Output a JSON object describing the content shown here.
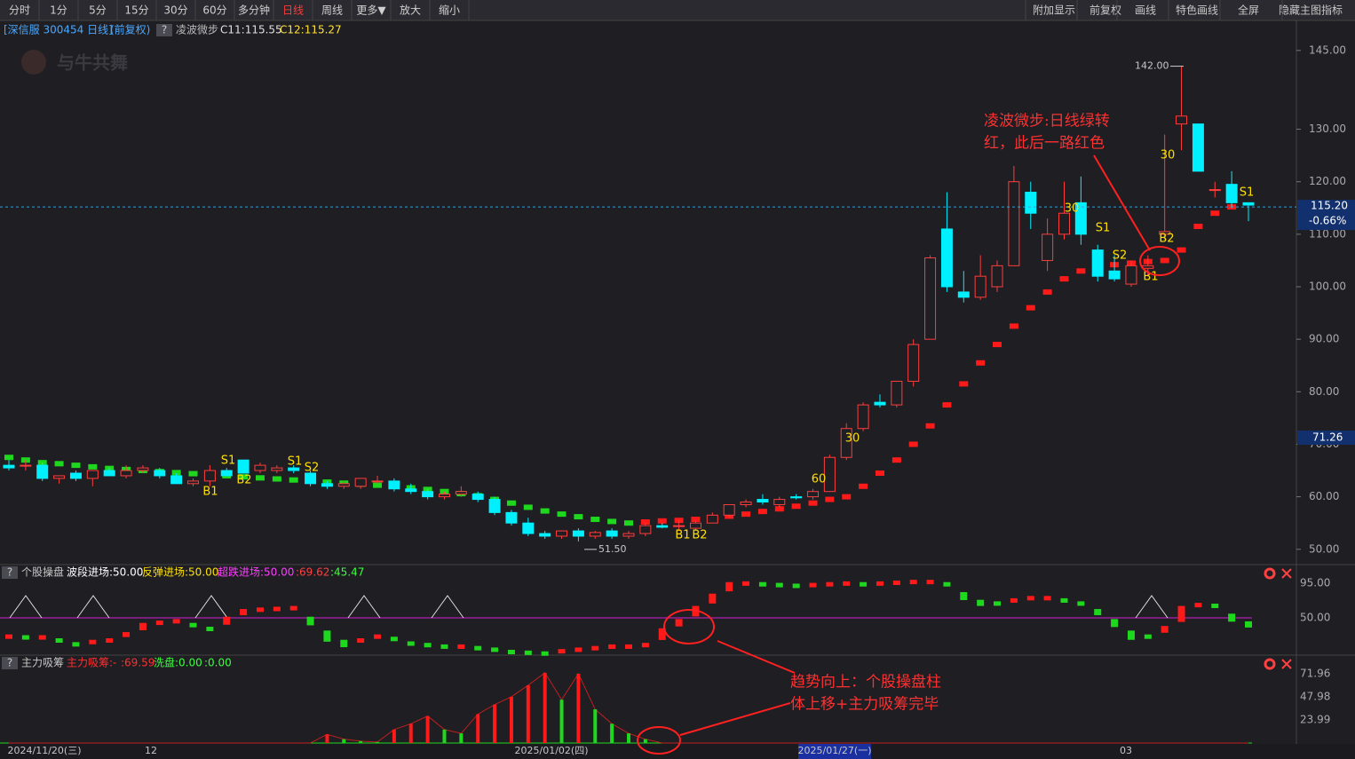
{
  "toolbar": {
    "left": [
      "分时",
      "1分",
      "5分",
      "15分",
      "30分",
      "60分",
      "多分钟",
      "日线",
      "周线",
      "更多▼",
      "放大",
      "缩小"
    ],
    "active": "日线",
    "right": [
      "附加显示",
      "前复权",
      "画线",
      "特色画线",
      "全屏",
      "隐藏主图指标"
    ]
  },
  "header": {
    "stock": "[深信服 300454 日线]",
    "adjust": "(前复权)",
    "help": "?",
    "indicator": "凌波微步",
    "c11": "C11:115.55",
    "c12": "C12:115.27",
    "watermark": "与牛共舞"
  },
  "chart_data": {
    "type": "candlestick",
    "ylim": [
      48.1,
      147
    ],
    "yticks": [
      {
        "value": 145,
        "label": "145.00"
      },
      {
        "value": 130,
        "label": "130.00"
      },
      {
        "value": 120,
        "label": "120.00"
      },
      {
        "value": 110,
        "label": "110.00"
      },
      {
        "value": 100,
        "label": "100.00"
      },
      {
        "value": 90,
        "label": "90.00"
      },
      {
        "value": 80,
        "label": "80.00"
      },
      {
        "value": 70,
        "label": "70.00"
      },
      {
        "value": 60,
        "label": "60.00"
      },
      {
        "value": 50,
        "label": "50.00"
      }
    ],
    "up_color": "#ff3d3d",
    "down_color": "#00f0ff",
    "candles": [
      [
        66,
        67,
        65,
        65.5
      ],
      [
        66,
        67,
        65,
        66
      ],
      [
        66,
        66.5,
        63,
        63.5
      ],
      [
        63.5,
        64,
        62.5,
        64
      ],
      [
        64.5,
        65,
        63,
        63.5
      ],
      [
        63.5,
        65,
        62,
        65
      ],
      [
        65,
        65.5,
        64,
        64
      ],
      [
        64,
        66,
        63.5,
        65
      ],
      [
        65,
        66,
        64.5,
        65.5
      ],
      [
        65,
        65.5,
        63.5,
        64
      ],
      [
        64,
        64.5,
        62.5,
        62.5
      ],
      [
        62.5,
        63.5,
        62,
        63
      ],
      [
        63,
        66,
        62,
        65
      ],
      [
        65,
        65.5,
        64,
        64
      ],
      [
        67,
        67,
        64.5,
        64.5
      ],
      [
        65,
        66.5,
        64.5,
        66
      ],
      [
        65,
        66,
        64.5,
        65.5
      ],
      [
        65.5,
        66,
        64.5,
        65
      ],
      [
        64.5,
        65,
        62,
        62.5
      ],
      [
        62.5,
        63,
        61.5,
        62
      ],
      [
        62,
        63,
        61.5,
        62.5
      ],
      [
        62,
        63.5,
        61.5,
        63.5
      ],
      [
        63,
        64,
        62.5,
        63
      ],
      [
        63,
        63.5,
        61,
        61.5
      ],
      [
        61.5,
        62.5,
        60.5,
        61
      ],
      [
        61,
        61.5,
        59.5,
        60
      ],
      [
        60,
        61,
        59.5,
        60.5
      ],
      [
        60.5,
        62,
        60,
        61
      ],
      [
        60.5,
        61,
        59,
        59.5
      ],
      [
        59.5,
        60,
        56.5,
        57
      ],
      [
        57,
        57.5,
        54.5,
        55
      ],
      [
        55,
        56,
        52.5,
        53
      ],
      [
        53,
        53.5,
        52,
        52.5
      ],
      [
        52.5,
        53.5,
        52,
        53.5
      ],
      [
        53.5,
        54,
        51.5,
        52.5
      ],
      [
        52.5,
        53.5,
        52,
        53.2
      ],
      [
        53.5,
        54,
        52,
        52.5
      ],
      [
        52.5,
        53.5,
        52,
        53
      ],
      [
        53,
        55,
        52.5,
        54.5
      ],
      [
        54.5,
        55,
        54,
        54.2
      ],
      [
        54.5,
        55.5,
        53.5,
        54.5
      ],
      [
        54,
        55.5,
        53.5,
        55
      ],
      [
        55,
        57,
        55,
        56.5
      ],
      [
        56.5,
        58.5,
        56,
        58.5
      ],
      [
        58.5,
        59.5,
        58,
        59
      ],
      [
        59.5,
        60.5,
        58.5,
        59
      ],
      [
        58.5,
        60,
        58,
        59.5
      ],
      [
        60,
        60.5,
        59.5,
        59.8
      ],
      [
        60,
        61.5,
        59.5,
        61
      ],
      [
        61,
        68,
        61,
        67.5
      ],
      [
        67.5,
        74,
        67,
        73
      ],
      [
        73,
        78,
        72.5,
        77.5
      ],
      [
        78,
        79.5,
        77,
        77.5
      ],
      [
        77.5,
        82,
        77,
        82
      ],
      [
        82,
        90,
        81,
        89
      ],
      [
        90,
        106,
        90,
        105.5
      ],
      [
        111,
        118,
        99,
        100
      ],
      [
        99,
        103,
        97,
        98
      ],
      [
        98,
        106,
        97.5,
        102
      ],
      [
        100,
        105,
        99,
        104
      ],
      [
        104,
        123,
        104,
        120
      ],
      [
        118,
        120,
        111,
        114
      ],
      [
        105,
        113,
        103,
        110
      ],
      [
        110,
        120,
        109,
        114
      ],
      [
        116,
        121,
        108,
        110
      ],
      [
        107,
        108,
        101,
        102
      ],
      [
        103,
        106,
        101,
        101.5
      ],
      [
        100.5,
        105,
        100,
        104
      ],
      [
        103.5,
        106,
        102,
        104
      ],
      [
        110,
        129,
        109,
        110.5
      ],
      [
        131,
        142,
        126,
        132.5
      ],
      [
        131,
        131,
        122,
        122
      ],
      [
        118.5,
        120,
        117,
        118.5
      ],
      [
        119.5,
        122,
        115,
        116
      ],
      [
        116,
        116,
        112.5,
        115.55
      ]
    ],
    "trend": {
      "up_color": "#ff1a1a",
      "down_color": "#1ed81e",
      "values": [
        67.5,
        67,
        66.5,
        66.3,
        66,
        65.7,
        65.4,
        65.2,
        65,
        64.8,
        64.6,
        64.4,
        64.2,
        64,
        63.8,
        63.6,
        63.4,
        63.2,
        63,
        62.8,
        62.6,
        62.4,
        62.2,
        62,
        61.7,
        61.4,
        61,
        60.6,
        60.2,
        59.5,
        58.8,
        58,
        57.3,
        56.7,
        56.2,
        55.7,
        55.3,
        55,
        55.2,
        55.4,
        55.5,
        55.7,
        56,
        56.3,
        56.7,
        57.2,
        57.7,
        58.2,
        58.8,
        59.5,
        60,
        62,
        64.5,
        67,
        70,
        73.5,
        77.5,
        81.5,
        85.5,
        89,
        92.5,
        96,
        99,
        101.5,
        103,
        103.6,
        104.2,
        104.5,
        104.8,
        105,
        107,
        111.5,
        114,
        115.2,
        null
      ]
    },
    "high_marker": {
      "value": 142,
      "label": "142.00"
    },
    "low_marker": {
      "value": 51.5,
      "label": "51.50"
    },
    "last_price": {
      "value": 115.2,
      "label": "115.20"
    },
    "change": "-0.66%",
    "cursor_price": {
      "value": 71.26,
      "label": "71.26"
    },
    "signals": [
      "S1",
      "B1",
      "B2",
      "S1",
      "S2",
      "B1",
      "B2",
      "60",
      "30",
      "30",
      "S1",
      "S2",
      "B1",
      "B2",
      "30",
      "S1"
    ],
    "annotations": [
      [
        "凌波微步:日线绿转",
        "红，此后一路红色"
      ],
      [
        "趋势向上：个股操盘柱",
        "体上移+主力吸筹完毕"
      ]
    ],
    "dates": [
      "2024/11/20(三)",
      "12",
      "2025/01/02(四)",
      "2025/01/27(一)",
      "03"
    ]
  },
  "panel1": {
    "help": "?",
    "title": "个股操盘",
    "labels": [
      "波段进场:50.00",
      "反弹进场:50.00",
      "超跌进场:50.00",
      ":69.62",
      ":45.47"
    ],
    "ylim": [
      2.7,
      97.3
    ],
    "yticks": [
      {
        "value": 95,
        "label": "95.00"
      },
      {
        "value": 50,
        "label": "50.00"
      }
    ],
    "reference": 50,
    "values": [
      25,
      24,
      24,
      20,
      15,
      18,
      20,
      28,
      40,
      43,
      45,
      40,
      35,
      48,
      58,
      60,
      61,
      62,
      48,
      30,
      18,
      20,
      25,
      22,
      16,
      14,
      12,
      12,
      10,
      8,
      5,
      4,
      3,
      6,
      8,
      10,
      12,
      12,
      14,
      33,
      45,
      62,
      78,
      93,
      94,
      93,
      92,
      91,
      92,
      93,
      94,
      93,
      94,
      95,
      96,
      96,
      93,
      80,
      70,
      68,
      72,
      75,
      75,
      72,
      68,
      58,
      45,
      30,
      25,
      36,
      62,
      66,
      65,
      52,
      42
    ]
  },
  "panel2": {
    "help": "?",
    "title": "主力吸筹",
    "labels": [
      "主力吸筹:-",
      ":69.59",
      "洗盘:0.00",
      ":0.00"
    ],
    "ylim": [
      0,
      78.4
    ],
    "yticks": [
      71.96,
      47.98,
      23.99
    ],
    "values": [
      0,
      0,
      0,
      0,
      0,
      0,
      0,
      0,
      0,
      0,
      0,
      0,
      0,
      0,
      0,
      0,
      0,
      0,
      0,
      9,
      4,
      2,
      1,
      14,
      20,
      28,
      14,
      10,
      30,
      40,
      48,
      60,
      73,
      45,
      72,
      35,
      20,
      10,
      4,
      0,
      0,
      0,
      0,
      0,
      0,
      0,
      0,
      0,
      0,
      0,
      0,
      0,
      0,
      0,
      0,
      0,
      0,
      0,
      0,
      0,
      0,
      0,
      0,
      0,
      0,
      0,
      0,
      0,
      0,
      0,
      0,
      0,
      0,
      0,
      0
    ]
  }
}
